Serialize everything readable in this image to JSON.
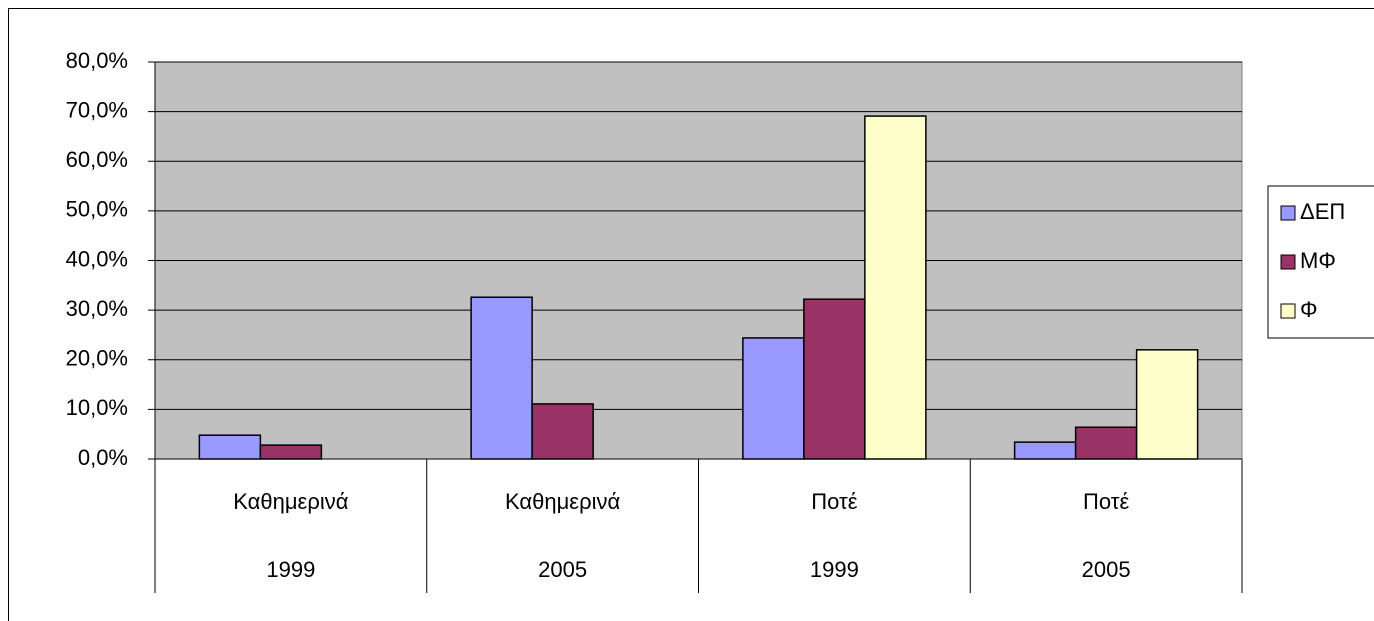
{
  "chart_data": {
    "type": "bar",
    "categories": [
      "Καθημερινά",
      "Καθημερινά",
      "Ποτέ",
      "Ποτέ"
    ],
    "category_years": [
      "1999",
      "2005",
      "1999",
      "2005"
    ],
    "series": [
      {
        "name": "ΔΕΠ",
        "color": "#9999ff",
        "values": [
          4.8,
          32.6,
          24.4,
          3.4
        ]
      },
      {
        "name": "ΜΦ",
        "color": "#993366",
        "values": [
          2.8,
          11.1,
          32.2,
          6.4
        ]
      },
      {
        "name": "Φ",
        "color": "#ffffcc",
        "values": [
          0,
          0,
          69.1,
          22.0
        ]
      }
    ],
    "ylim": [
      0,
      80
    ],
    "yticks": [
      {
        "value": 0,
        "label": "0,0%"
      },
      {
        "value": 10,
        "label": "10,0%"
      },
      {
        "value": 20,
        "label": "20,0%"
      },
      {
        "value": 30,
        "label": "30,0%"
      },
      {
        "value": 40,
        "label": "40,0%"
      },
      {
        "value": 50,
        "label": "50,0%"
      },
      {
        "value": 60,
        "label": "60,0%"
      },
      {
        "value": 70,
        "label": "70,0%"
      },
      {
        "value": 80,
        "label": "80,0%"
      }
    ],
    "grid": true,
    "plot_background": "#c0c0c0",
    "legend": "right"
  }
}
